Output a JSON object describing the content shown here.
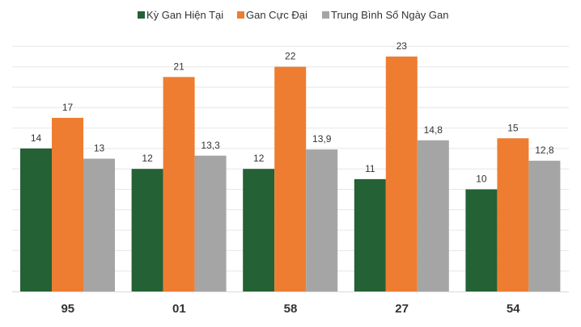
{
  "chart_data": {
    "type": "bar",
    "title": "",
    "xlabel": "",
    "ylabel": "",
    "ylim": [
      0,
      28
    ],
    "grid": true,
    "legend_position": "top",
    "categories": [
      "95",
      "01",
      "58",
      "27",
      "54"
    ],
    "series": [
      {
        "name": "Kỳ Gan Hiện Tại",
        "color": "#246135",
        "values": [
          14,
          12,
          12,
          11,
          10
        ],
        "labels": [
          "14",
          "12",
          "12",
          "11",
          "10"
        ]
      },
      {
        "name": "Gan Cực Đại",
        "color": "#ee7d31",
        "values": [
          17,
          21,
          22,
          23,
          15
        ],
        "labels": [
          "17",
          "21",
          "22",
          "23",
          "15"
        ]
      },
      {
        "name": "Trung Bình Số Ngày Gan",
        "color": "#a5a5a5",
        "values": [
          13,
          13.3,
          13.9,
          14.8,
          12.8
        ],
        "labels": [
          "13",
          "13,3",
          "13,9",
          "14,8",
          "12,8"
        ]
      }
    ]
  }
}
